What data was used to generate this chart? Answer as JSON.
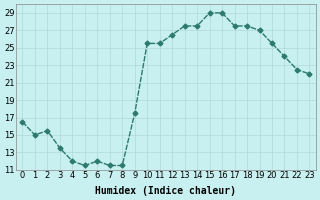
{
  "x": [
    0,
    1,
    2,
    3,
    4,
    5,
    6,
    7,
    8,
    9,
    10,
    11,
    12,
    13,
    14,
    15,
    16,
    17,
    18,
    19,
    20,
    21,
    22,
    23
  ],
  "y": [
    16.5,
    15.0,
    15.5,
    13.5,
    12.0,
    11.5,
    12.0,
    11.5,
    11.5,
    17.5,
    25.5,
    25.5,
    26.5,
    27.5,
    27.5,
    29.0,
    29.0,
    27.5,
    27.5,
    27.0,
    25.5,
    24.0,
    22.5,
    22.0
  ],
  "line_color": "#2d7a6e",
  "marker": "D",
  "marker_size": 2.5,
  "bg_color": "#c8f0f0",
  "grid_color": "#b0d8d8",
  "xlabel": "Humidex (Indice chaleur)",
  "ylim": [
    11,
    30
  ],
  "xlim": [
    -0.5,
    23.5
  ],
  "yticks": [
    11,
    13,
    15,
    17,
    19,
    21,
    23,
    25,
    27,
    29
  ],
  "xticks": [
    0,
    1,
    2,
    3,
    4,
    5,
    6,
    7,
    8,
    9,
    10,
    11,
    12,
    13,
    14,
    15,
    16,
    17,
    18,
    19,
    20,
    21,
    22,
    23
  ],
  "title_fontsize": 7,
  "label_fontsize": 7,
  "tick_fontsize": 6
}
